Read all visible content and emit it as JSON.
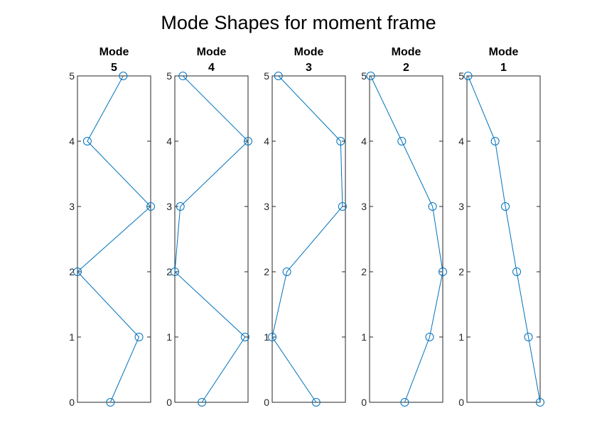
{
  "chart_data": {
    "type": "line",
    "title": "Mode Shapes for moment frame",
    "accent_color": "#0072BD",
    "marker": "circle",
    "grid": false,
    "ylim": [
      0,
      5
    ],
    "yticks": [
      "0",
      "1",
      "2",
      "3",
      "4",
      "5"
    ],
    "y": [
      0,
      1,
      2,
      3,
      4,
      5
    ],
    "subplots": [
      {
        "title": [
          "Mode",
          "5"
        ],
        "xlim": [
          -1,
          1
        ],
        "x": [
          -0.1,
          0.68,
          -1.0,
          1.0,
          -0.73,
          0.25
        ]
      },
      {
        "title": [
          "Mode",
          "4"
        ],
        "xlim": [
          -1,
          1
        ],
        "x": [
          -0.26,
          0.92,
          -1.0,
          -0.85,
          1.0,
          -0.78
        ]
      },
      {
        "title": [
          "Mode",
          "3"
        ],
        "xlim": [
          -1,
          1
        ],
        "x": [
          0.2,
          -1.0,
          -0.6,
          0.92,
          0.87,
          -0.83
        ]
      },
      {
        "title": [
          "Mode",
          "2"
        ],
        "xlim": [
          -1,
          1
        ],
        "x": [
          -0.04,
          0.64,
          1.0,
          0.72,
          -0.12,
          -0.97
        ]
      },
      {
        "title": [
          "Mode",
          "1"
        ],
        "xlim": [
          -1,
          1
        ],
        "x": [
          1.0,
          0.68,
          0.36,
          0.05,
          -0.23,
          -0.97
        ]
      }
    ]
  }
}
